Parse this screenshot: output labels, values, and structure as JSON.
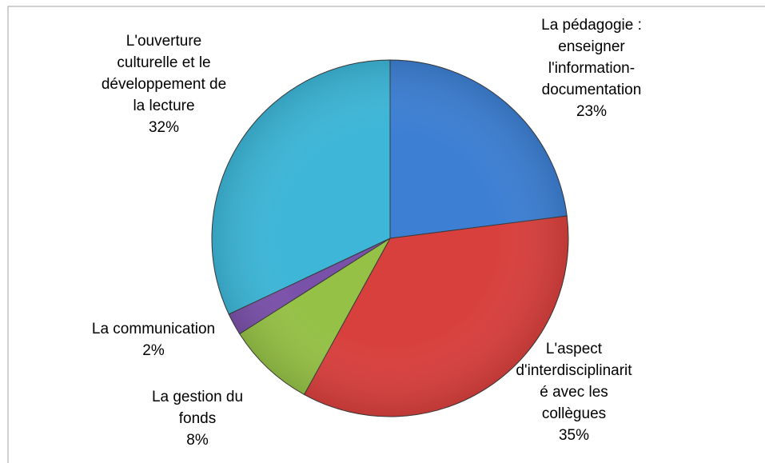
{
  "chart_data": {
    "type": "pie",
    "categories": [
      "La pédagogie : enseigner l'information-documentation",
      "L'aspect d'interdisciplinarité avec les collègues",
      "La gestion du fonds",
      "La communication",
      "L'ouverture culturelle et le développement de la lecture"
    ],
    "values": [
      23,
      35,
      8,
      2,
      32
    ],
    "value_labels": [
      "23%",
      "35%",
      "8%",
      "2%",
      "32%"
    ],
    "colors": [
      "#3d7fd3",
      "#d8403d",
      "#95c146",
      "#7a51a9",
      "#3db6d7"
    ]
  }
}
